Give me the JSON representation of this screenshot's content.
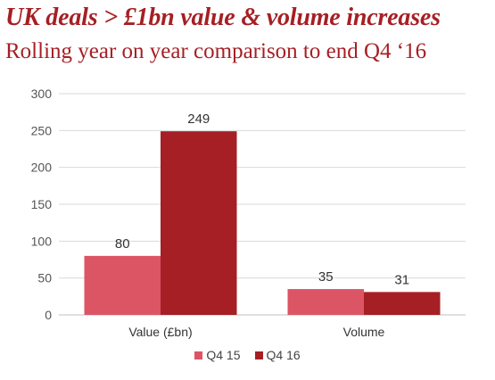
{
  "title": "UK deals > £1bn value & volume increases",
  "subtitle": "Rolling year on year comparison to end Q4 ‘16",
  "chart_data": {
    "type": "bar",
    "categories": [
      "Value (£bn)",
      "Volume"
    ],
    "series": [
      {
        "name": "Q4 15",
        "values": [
          80,
          35
        ],
        "color": "#dc5565"
      },
      {
        "name": "Q4 16",
        "values": [
          249,
          31
        ],
        "color": "#a61f24"
      }
    ],
    "ylim": [
      0,
      300
    ],
    "yticks": [
      0,
      50,
      100,
      150,
      200,
      250,
      300
    ],
    "grid": true,
    "legend": "bottom",
    "data_labels": true
  }
}
